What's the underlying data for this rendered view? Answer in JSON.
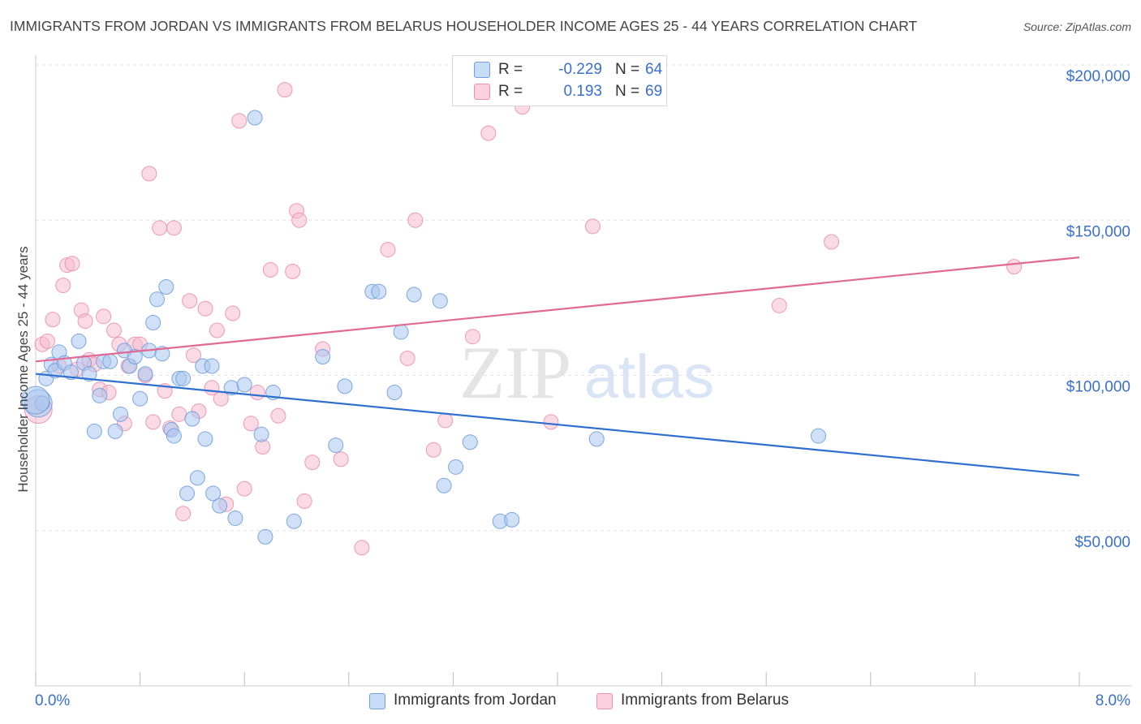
{
  "header": {
    "title": "IMMIGRANTS FROM JORDAN VS IMMIGRANTS FROM BELARUS HOUSEHOLDER INCOME AGES 25 - 44 YEARS CORRELATION CHART",
    "source": "Source: ZipAtlas.com"
  },
  "legend": {
    "r_label": "R =",
    "n_label": "N =",
    "jordan": {
      "r": "-0.229",
      "n": "64"
    },
    "belarus": {
      "r": "0.193",
      "n": "69"
    }
  },
  "watermark": {
    "zip": "ZIP",
    "atlas": "atlas"
  },
  "colors": {
    "jordan_fill": "#a9c6ef",
    "jordan_stroke": "#6f9fde",
    "jordan_line": "#2f6fd0",
    "belarus_fill": "#f6bcd0",
    "belarus_stroke": "#ec8fb0",
    "belarus_line": "#e06a93",
    "tick_label": "#3a6fcf",
    "grid": "#e2e2e2"
  },
  "chart_data": {
    "type": "scatter",
    "title": "IMMIGRANTS FROM JORDAN VS IMMIGRANTS FROM BELARUS HOUSEHOLDER INCOME AGES 25 - 44 YEARS CORRELATION CHART",
    "xlabel": "",
    "ylabel": "Householder Income Ages 25 - 44 years",
    "xlim": [
      0,
      8
    ],
    "ylim": [
      0,
      210000
    ],
    "x_tick_labels": {
      "min": "0.0%",
      "max": "8.0%"
    },
    "y_ticks": [
      {
        "value": 50000,
        "label": "$50,000"
      },
      {
        "value": 100000,
        "label": "$100,000"
      },
      {
        "value": 150000,
        "label": "$150,000"
      },
      {
        "value": 200000,
        "label": "$200,000"
      }
    ],
    "grid": true,
    "legend_position": "top-center",
    "series": [
      {
        "name": "Immigrants from Jordan",
        "r": -0.229,
        "n": 64,
        "trend": {
          "x": [
            0,
            8
          ],
          "y": [
            100500,
            67800
          ]
        },
        "points": [
          [
            0.02,
            91000
          ],
          [
            0.05,
            91000
          ],
          [
            0.08,
            99000
          ],
          [
            0.12,
            103500
          ],
          [
            0.15,
            101500
          ],
          [
            0.18,
            107500
          ],
          [
            0.22,
            104000
          ],
          [
            0.27,
            101000
          ],
          [
            0.33,
            111000
          ],
          [
            0.37,
            104000
          ],
          [
            0.41,
            100500
          ],
          [
            0.45,
            82000
          ],
          [
            0.49,
            93500
          ],
          [
            0.52,
            104500
          ],
          [
            0.57,
            104500
          ],
          [
            0.61,
            82000
          ],
          [
            0.65,
            87500
          ],
          [
            0.68,
            108000
          ],
          [
            0.72,
            103000
          ],
          [
            0.76,
            106000
          ],
          [
            0.8,
            92500
          ],
          [
            0.84,
            100500
          ],
          [
            0.87,
            108000
          ],
          [
            0.9,
            117000
          ],
          [
            0.93,
            124500
          ],
          [
            0.97,
            107000
          ],
          [
            1.0,
            128500
          ],
          [
            1.04,
            82500
          ],
          [
            1.06,
            80500
          ],
          [
            1.1,
            99000
          ],
          [
            1.13,
            99000
          ],
          [
            1.16,
            62000
          ],
          [
            1.2,
            86000
          ],
          [
            1.24,
            67000
          ],
          [
            1.28,
            103000
          ],
          [
            1.3,
            79500
          ],
          [
            1.35,
            103000
          ],
          [
            1.36,
            62000
          ],
          [
            1.41,
            58000
          ],
          [
            1.5,
            96000
          ],
          [
            1.53,
            54000
          ],
          [
            1.6,
            97000
          ],
          [
            1.68,
            183000
          ],
          [
            1.73,
            81000
          ],
          [
            1.76,
            48000
          ],
          [
            1.82,
            94500
          ],
          [
            1.98,
            53000
          ],
          [
            2.2,
            106000
          ],
          [
            2.3,
            77500
          ],
          [
            2.37,
            96500
          ],
          [
            2.58,
            127000
          ],
          [
            2.63,
            127000
          ],
          [
            2.75,
            94500
          ],
          [
            2.8,
            114000
          ],
          [
            2.9,
            126000
          ],
          [
            3.1,
            124000
          ],
          [
            3.13,
            64500
          ],
          [
            3.22,
            70500
          ],
          [
            3.33,
            78500
          ],
          [
            3.56,
            53000
          ],
          [
            3.65,
            53500
          ],
          [
            4.3,
            79500
          ],
          [
            6.0,
            80500
          ],
          [
            0.0,
            92000
          ]
        ]
      },
      {
        "name": "Immigrants from Belarus",
        "r": 0.193,
        "n": 69,
        "trend": {
          "x": [
            0,
            8
          ],
          "y": [
            104500,
            138000
          ]
        },
        "points": [
          [
            0.02,
            89000
          ],
          [
            0.05,
            110000
          ],
          [
            0.09,
            111000
          ],
          [
            0.13,
            118000
          ],
          [
            0.18,
            103000
          ],
          [
            0.21,
            129000
          ],
          [
            0.24,
            135500
          ],
          [
            0.28,
            136000
          ],
          [
            0.32,
            102000
          ],
          [
            0.35,
            121000
          ],
          [
            0.38,
            117500
          ],
          [
            0.41,
            105000
          ],
          [
            0.45,
            103500
          ],
          [
            0.49,
            95500
          ],
          [
            0.52,
            119000
          ],
          [
            0.56,
            94500
          ],
          [
            0.6,
            114500
          ],
          [
            0.64,
            110000
          ],
          [
            0.68,
            84500
          ],
          [
            0.71,
            103000
          ],
          [
            0.76,
            110000
          ],
          [
            0.8,
            110000
          ],
          [
            0.84,
            100000
          ],
          [
            0.87,
            165000
          ],
          [
            0.9,
            85000
          ],
          [
            0.95,
            147500
          ],
          [
            0.99,
            95000
          ],
          [
            1.03,
            83000
          ],
          [
            1.06,
            147500
          ],
          [
            1.1,
            87500
          ],
          [
            1.13,
            55500
          ],
          [
            1.18,
            124000
          ],
          [
            1.21,
            106500
          ],
          [
            1.25,
            88500
          ],
          [
            1.3,
            121500
          ],
          [
            1.35,
            96000
          ],
          [
            1.39,
            114500
          ],
          [
            1.42,
            92500
          ],
          [
            1.46,
            58500
          ],
          [
            1.51,
            120000
          ],
          [
            1.56,
            182000
          ],
          [
            1.6,
            63500
          ],
          [
            1.65,
            84500
          ],
          [
            1.7,
            94500
          ],
          [
            1.74,
            77000
          ],
          [
            1.8,
            134000
          ],
          [
            1.86,
            87000
          ],
          [
            1.91,
            192000
          ],
          [
            1.97,
            133500
          ],
          [
            2.0,
            153000
          ],
          [
            2.02,
            150000
          ],
          [
            2.06,
            59500
          ],
          [
            2.12,
            72000
          ],
          [
            2.2,
            108500
          ],
          [
            2.34,
            73000
          ],
          [
            2.5,
            44500
          ],
          [
            2.7,
            140500
          ],
          [
            2.85,
            105500
          ],
          [
            2.91,
            150000
          ],
          [
            3.05,
            76000
          ],
          [
            3.14,
            85500
          ],
          [
            3.35,
            112500
          ],
          [
            3.47,
            178000
          ],
          [
            3.73,
            186500
          ],
          [
            3.95,
            85000
          ],
          [
            4.27,
            148000
          ],
          [
            5.7,
            122500
          ],
          [
            6.1,
            143000
          ],
          [
            7.5,
            135000
          ]
        ]
      }
    ]
  },
  "bottom_legend": {
    "jordan": "Immigrants from Jordan",
    "belarus": "Immigrants from Belarus"
  }
}
